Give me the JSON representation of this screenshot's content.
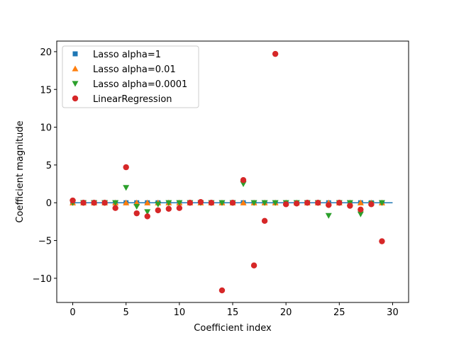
{
  "chart_data": {
    "type": "scatter",
    "xlabel": "Coefficient index",
    "ylabel": "Coefficient magnitude",
    "xlim": [
      -1.5,
      31.5
    ],
    "ylim": [
      -13.2,
      21.4
    ],
    "xticks": [
      0,
      5,
      10,
      15,
      20,
      25,
      30
    ],
    "yticks": [
      -10,
      -5,
      0,
      5,
      10,
      15,
      20
    ],
    "xtick_labels": [
      "0",
      "5",
      "10",
      "15",
      "20",
      "25",
      "30"
    ],
    "ytick_labels": [
      "−10",
      "−5",
      "0",
      "5",
      "10",
      "15",
      "20"
    ],
    "hline": {
      "y": 0,
      "xmin": 0,
      "xmax": 30,
      "color": "#1f77b4"
    },
    "grid": false,
    "legend_position": "upper-left",
    "series": [
      {
        "name": "Lasso alpha=1",
        "marker": "square",
        "color": "#1f77b4",
        "x": [
          0,
          1,
          2,
          3,
          4,
          5,
          6,
          7,
          8,
          9,
          10,
          11,
          12,
          13,
          14,
          15,
          16,
          17,
          18,
          19,
          20,
          21,
          22,
          23,
          24,
          25,
          26,
          27,
          28,
          29
        ],
        "y": [
          0,
          0,
          0,
          0,
          0,
          0,
          0,
          0,
          0,
          0,
          0,
          0,
          0,
          0,
          0,
          0,
          0,
          0,
          0,
          0,
          0,
          0,
          0,
          0,
          0,
          0,
          0,
          0,
          0,
          0
        ]
      },
      {
        "name": "Lasso alpha=0.01",
        "marker": "triangle-up",
        "color": "#ff7f0e",
        "x": [
          0,
          1,
          2,
          3,
          4,
          5,
          6,
          7,
          8,
          9,
          10,
          11,
          12,
          13,
          14,
          15,
          16,
          17,
          18,
          19,
          20,
          21,
          22,
          23,
          24,
          25,
          26,
          27,
          28,
          29
        ],
        "y": [
          0,
          0,
          0,
          0,
          0,
          0,
          0,
          0,
          0,
          0,
          0,
          0,
          0,
          0,
          0,
          0,
          0,
          0,
          0,
          0,
          0,
          0,
          0,
          0,
          0,
          0,
          0,
          0,
          0,
          0
        ]
      },
      {
        "name": "Lasso alpha=0.0001",
        "marker": "triangle-down",
        "color": "#2ca02c",
        "x": [
          0,
          1,
          2,
          3,
          4,
          5,
          6,
          7,
          8,
          9,
          10,
          11,
          12,
          13,
          14,
          15,
          16,
          17,
          18,
          19,
          20,
          21,
          22,
          23,
          24,
          25,
          26,
          27,
          28,
          29
        ],
        "y": [
          0,
          0,
          0,
          0,
          0,
          2.0,
          -0.5,
          -1.2,
          -0.2,
          0,
          0,
          0,
          0,
          0,
          0,
          0,
          2.5,
          0,
          0,
          0,
          0,
          0,
          0,
          0,
          -1.7,
          0,
          0,
          -1.5,
          -0.1,
          0
        ]
      },
      {
        "name": "LinearRegression",
        "marker": "circle",
        "color": "#d62728",
        "x": [
          0,
          1,
          2,
          3,
          4,
          5,
          6,
          7,
          8,
          9,
          10,
          11,
          12,
          13,
          14,
          15,
          16,
          17,
          18,
          19,
          20,
          21,
          22,
          23,
          24,
          25,
          26,
          27,
          28,
          29
        ],
        "y": [
          0.3,
          0,
          0,
          0,
          -0.7,
          4.7,
          -1.4,
          -1.8,
          -1.0,
          -0.8,
          -0.7,
          0,
          0.1,
          0,
          -11.6,
          0,
          3.0,
          -8.3,
          -2.4,
          19.7,
          -0.2,
          -0.1,
          0,
          0,
          -0.3,
          0,
          -0.4,
          -0.9,
          -0.2,
          -5.1
        ]
      }
    ]
  }
}
